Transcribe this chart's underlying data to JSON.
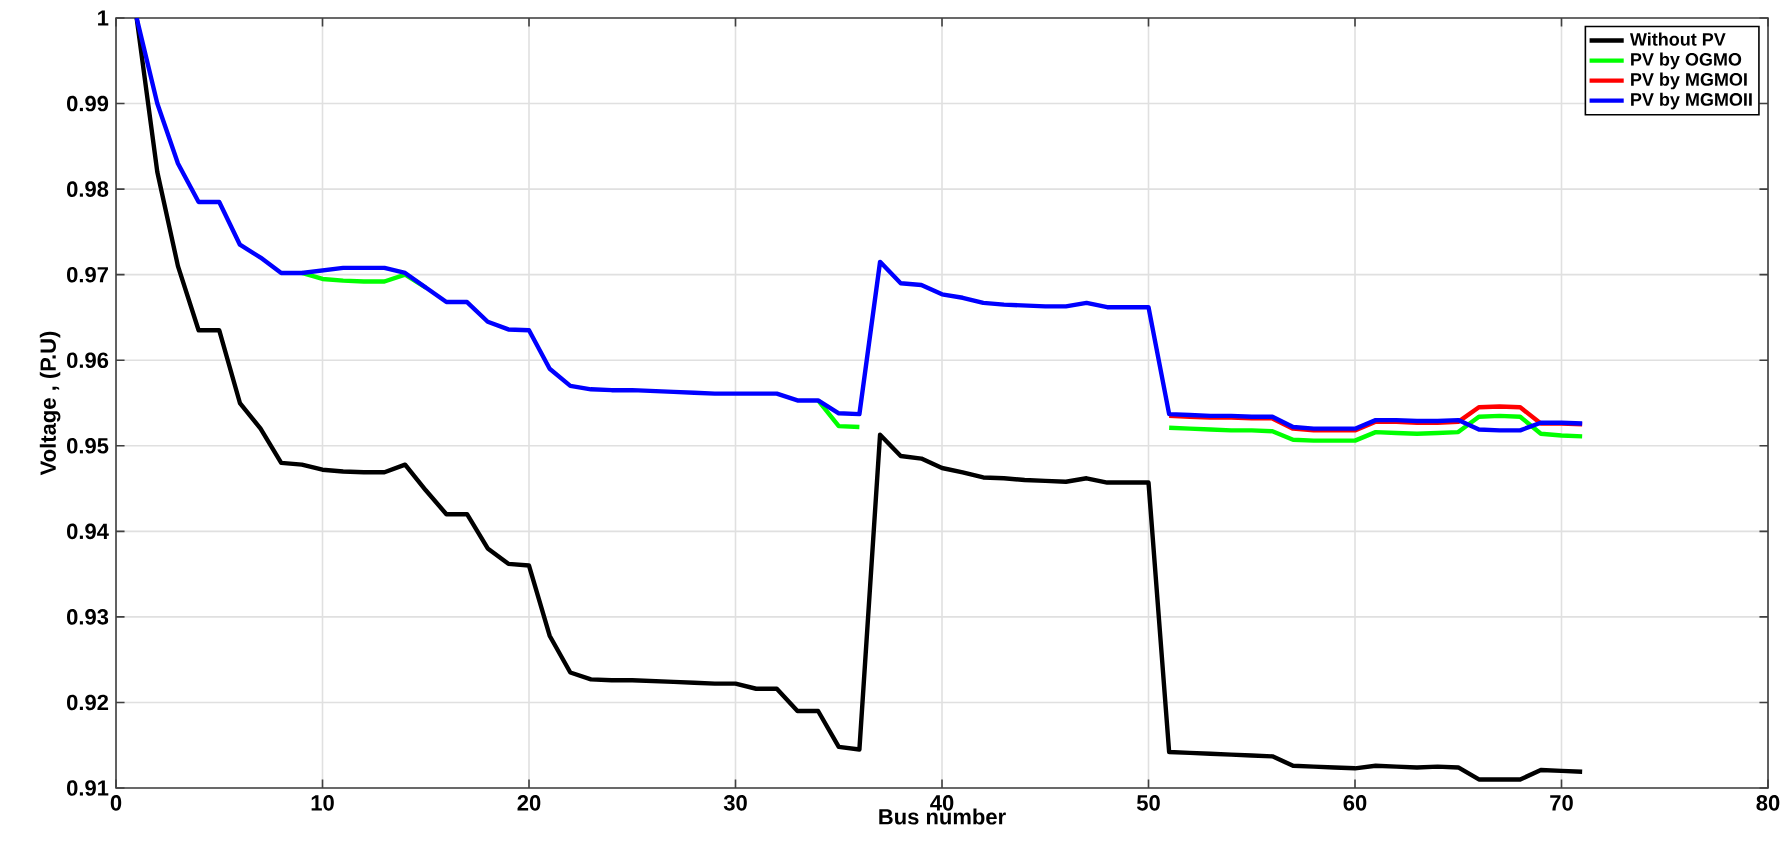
{
  "chart_data": {
    "type": "line",
    "xlabel": "Bus number",
    "ylabel": "Voltage , (P.U)",
    "x": [
      1,
      2,
      3,
      4,
      5,
      6,
      7,
      8,
      9,
      10,
      11,
      12,
      13,
      14,
      15,
      16,
      17,
      18,
      19,
      20,
      21,
      22,
      23,
      24,
      25,
      26,
      27,
      28,
      29,
      30,
      31,
      32,
      33,
      34,
      35,
      36,
      37,
      38,
      39,
      40,
      41,
      42,
      43,
      44,
      45,
      46,
      47,
      48,
      49,
      50,
      51,
      52,
      53,
      54,
      55,
      56,
      57,
      58,
      59,
      60,
      61,
      62,
      63,
      64,
      65,
      66,
      67,
      68,
      69,
      70,
      71
    ],
    "series": [
      {
        "name": "Without PV",
        "color": "#000000",
        "values": [
          1.0,
          0.982,
          0.971,
          0.9635,
          0.9635,
          0.955,
          0.952,
          0.948,
          0.9478,
          0.9472,
          0.947,
          0.9469,
          0.9469,
          0.9478,
          0.9448,
          0.942,
          0.942,
          0.938,
          0.9362,
          0.936,
          0.9278,
          0.9235,
          0.9227,
          0.9226,
          0.9226,
          0.9225,
          0.9224,
          0.9223,
          0.9222,
          0.9222,
          0.9216,
          0.9216,
          0.919,
          0.919,
          0.9148,
          0.9145,
          0.9513,
          0.9488,
          0.9485,
          0.9474,
          0.9469,
          0.9463,
          0.9462,
          0.946,
          0.9459,
          0.9458,
          0.9462,
          0.9457,
          0.9457,
          0.9457,
          0.9142,
          0.9141,
          0.914,
          0.9139,
          0.9138,
          0.9137,
          0.9126,
          0.9125,
          0.9124,
          0.9123,
          0.9126,
          0.9125,
          0.9124,
          0.9125,
          0.9124,
          0.911,
          0.911,
          0.911,
          0.9121,
          0.912,
          0.9119
        ]
      },
      {
        "name": "PV by OGMO",
        "color": "#00ff00",
        "values": [
          null,
          null,
          null,
          null,
          null,
          null,
          null,
          null,
          0.9702,
          0.9695,
          0.9693,
          0.9692,
          0.9692,
          0.97,
          0.9685,
          null,
          null,
          null,
          null,
          null,
          null,
          null,
          null,
          null,
          null,
          null,
          null,
          null,
          null,
          null,
          null,
          null,
          null,
          0.9553,
          0.9523,
          0.9522,
          null,
          null,
          null,
          null,
          null,
          null,
          null,
          null,
          null,
          null,
          null,
          null,
          null,
          null,
          0.9521,
          0.952,
          0.9519,
          0.9518,
          0.9518,
          0.9517,
          0.9507,
          0.9506,
          0.9506,
          0.9506,
          0.9516,
          0.9515,
          0.9514,
          0.9515,
          0.9516,
          0.9534,
          0.9535,
          0.9534,
          0.9514,
          0.9512,
          0.9511
        ]
      },
      {
        "name": "PV by MGMOI",
        "color": "#ff0000",
        "values": [
          null,
          null,
          null,
          null,
          null,
          null,
          null,
          null,
          null,
          null,
          null,
          null,
          null,
          null,
          null,
          null,
          null,
          null,
          null,
          null,
          null,
          null,
          null,
          null,
          null,
          null,
          null,
          null,
          null,
          null,
          null,
          null,
          null,
          null,
          null,
          null,
          null,
          null,
          null,
          null,
          null,
          null,
          null,
          null,
          null,
          null,
          null,
          null,
          null,
          null,
          0.9535,
          0.9534,
          0.9533,
          0.9533,
          0.9532,
          0.9532,
          0.952,
          0.9518,
          0.9518,
          0.9518,
          0.9528,
          0.9528,
          0.9527,
          0.9527,
          0.9528,
          0.9545,
          0.9546,
          0.9545,
          0.9526,
          0.9526,
          0.9525
        ]
      },
      {
        "name": "PV by MGMOII",
        "color": "#0000ff",
        "values": [
          1.0,
          0.99,
          0.983,
          0.9785,
          0.9785,
          0.9735,
          0.972,
          0.9702,
          0.9702,
          0.9705,
          0.9708,
          0.9708,
          0.9708,
          0.9702,
          0.9685,
          0.9668,
          0.9668,
          0.9645,
          0.9636,
          0.9635,
          0.959,
          0.957,
          0.9566,
          0.9565,
          0.9565,
          0.9564,
          0.9563,
          0.9562,
          0.9561,
          0.9561,
          0.9561,
          0.9561,
          0.9553,
          0.9553,
          0.9538,
          0.9537,
          0.9715,
          0.969,
          0.9688,
          0.9677,
          0.9673,
          0.9667,
          0.9665,
          0.9664,
          0.9663,
          0.9663,
          0.9667,
          0.9662,
          0.9662,
          0.9662,
          0.9537,
          0.9536,
          0.9535,
          0.9535,
          0.9534,
          0.9534,
          0.9522,
          0.952,
          0.952,
          0.952,
          0.953,
          0.953,
          0.9529,
          0.9529,
          0.953,
          0.9519,
          0.9518,
          0.9518,
          0.9527,
          0.9527,
          0.9526
        ]
      }
    ],
    "xlim": [
      0,
      80
    ],
    "ylim": [
      0.91,
      1
    ],
    "xticks": [
      0,
      10,
      20,
      30,
      40,
      50,
      60,
      70,
      80
    ],
    "yticks": [
      0.91,
      0.92,
      0.93,
      0.94,
      0.95,
      0.96,
      0.97,
      0.98,
      0.99,
      1
    ],
    "grid": true,
    "legend": "top right",
    "marker": "none",
    "line_style": "solid"
  }
}
